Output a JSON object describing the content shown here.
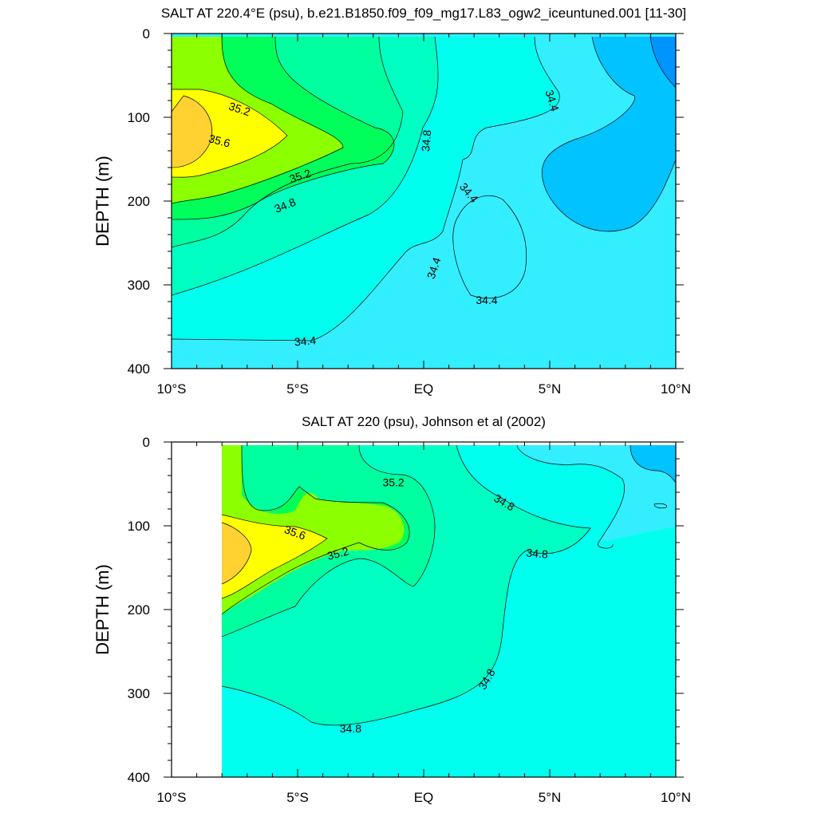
{
  "chart_data": [
    {
      "type": "contour",
      "title": "SALT AT 220.4°E (psu), b.e21.B1850.f09_f09_mg17.L83_ogw2_iceuntuned.001 [11-30]",
      "ylabel": "DEPTH (m)",
      "xlabel": "",
      "xlim": [
        -10,
        10
      ],
      "ylim": [
        400,
        0
      ],
      "y_reversed": true,
      "xticks": [
        {
          "value": -10,
          "label": "10°S"
        },
        {
          "value": -5,
          "label": "5°S"
        },
        {
          "value": 0,
          "label": "EQ"
        },
        {
          "value": 5,
          "label": "5°N"
        },
        {
          "value": 10,
          "label": "10°N"
        }
      ],
      "yticks": [
        {
          "value": 0,
          "label": "0"
        },
        {
          "value": 100,
          "label": "100"
        },
        {
          "value": 200,
          "label": "200"
        },
        {
          "value": 300,
          "label": "300"
        },
        {
          "value": 400,
          "label": "400"
        }
      ],
      "contour_interval": 0.2,
      "levels": [
        34.0,
        34.2,
        34.4,
        34.6,
        34.8,
        35.0,
        35.2,
        35.4,
        35.6,
        35.8
      ],
      "level_colors": [
        "#0094ff",
        "#00c3ff",
        "#33eeff",
        "#00ffee",
        "#00ffc3",
        "#00ff9f",
        "#00ff5a",
        "#8cff00",
        "#ffff00",
        "#ffd232"
      ],
      "contour_labels": [
        {
          "x": -7.3,
          "y": 90,
          "text": "35.2",
          "angle": 18
        },
        {
          "x": -8.1,
          "y": 128,
          "text": "35.6",
          "angle": 15
        },
        {
          "x": -4.9,
          "y": 170,
          "text": "35.2",
          "angle": -18
        },
        {
          "x": -5.5,
          "y": 205,
          "text": "34.8",
          "angle": -22
        },
        {
          "x": 0.1,
          "y": 128,
          "text": "34.8",
          "angle": -85
        },
        {
          "x": 5.1,
          "y": 80,
          "text": "34.4",
          "angle": 72
        },
        {
          "x": 1.8,
          "y": 190,
          "text": "34.4",
          "angle": 50
        },
        {
          "x": 0.4,
          "y": 280,
          "text": "34.4",
          "angle": -72
        },
        {
          "x": 2.5,
          "y": 318,
          "text": "34.4",
          "angle": 0
        },
        {
          "x": -4.7,
          "y": 367,
          "text": "34.4",
          "angle": -5
        }
      ]
    },
    {
      "type": "contour",
      "title": "SALT AT 220 (psu), Johnson et al (2002)",
      "ylabel": "DEPTH (m)",
      "xlabel": "",
      "xlim": [
        -10,
        10
      ],
      "ylim": [
        400,
        0
      ],
      "y_reversed": true,
      "data_xlim": [
        -8,
        10
      ],
      "xticks": [
        {
          "value": -10,
          "label": "10°S"
        },
        {
          "value": -5,
          "label": "5°S"
        },
        {
          "value": 0,
          "label": "EQ"
        },
        {
          "value": 5,
          "label": "5°N"
        },
        {
          "value": 10,
          "label": "10°N"
        }
      ],
      "yticks": [
        {
          "value": 0,
          "label": "0"
        },
        {
          "value": 100,
          "label": "100"
        },
        {
          "value": 200,
          "label": "200"
        },
        {
          "value": 300,
          "label": "300"
        },
        {
          "value": 400,
          "label": "400"
        }
      ],
      "contour_interval": 0.2,
      "levels": [
        34.4,
        34.6,
        34.8,
        35.0,
        35.2,
        35.4,
        35.6,
        35.8
      ],
      "level_colors": [
        "#00c3ff",
        "#33eeff",
        "#00ffee",
        "#00ffc3",
        "#00ff5a",
        "#8cff00",
        "#ffff00",
        "#ffd232"
      ],
      "contour_labels": [
        {
          "x": -1.2,
          "y": 48,
          "text": "35.2",
          "angle": 0
        },
        {
          "x": -5.1,
          "y": 108,
          "text": "35.6",
          "angle": 20
        },
        {
          "x": -3.4,
          "y": 133,
          "text": "35.2",
          "angle": -15
        },
        {
          "x": 3.2,
          "y": 72,
          "text": "34.8",
          "angle": 30
        },
        {
          "x": 4.5,
          "y": 133,
          "text": "34.8",
          "angle": 5
        },
        {
          "x": 2.5,
          "y": 283,
          "text": "34.8",
          "angle": -60
        },
        {
          "x": -2.9,
          "y": 342,
          "text": "34.8",
          "angle": 0
        }
      ]
    }
  ]
}
